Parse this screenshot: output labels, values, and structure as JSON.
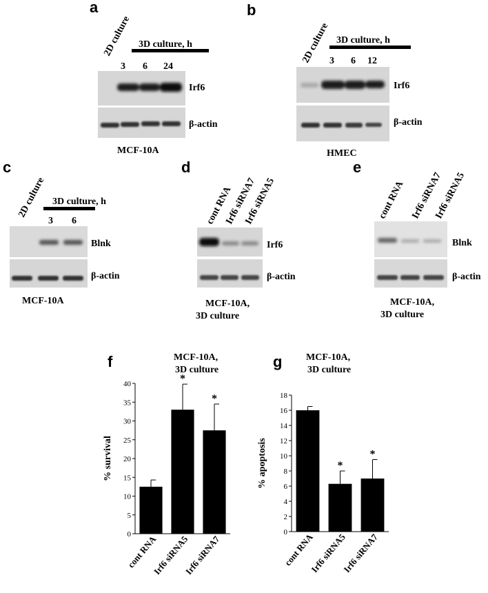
{
  "panels": {
    "a": {
      "letter": "a",
      "col_2d": "2D culture",
      "col_3d": "3D culture, h",
      "times": [
        "3",
        "6",
        "24"
      ],
      "band_top": "Irf6",
      "band_bottom": "β-actin",
      "cell_line": "MCF-10A"
    },
    "b": {
      "letter": "b",
      "col_2d": "2D culture",
      "col_3d": "3D culture, h",
      "times": [
        "3",
        "6",
        "12"
      ],
      "band_top": "Irf6",
      "band_bottom": "β-actin",
      "cell_line": "HMEC"
    },
    "c": {
      "letter": "c",
      "col_2d": "2D culture",
      "col_3d": "3D culture, h",
      "times": [
        "3",
        "6"
      ],
      "band_top": "Blnk",
      "band_bottom": "β-actin",
      "cell_line": "MCF-10A"
    },
    "d": {
      "letter": "d",
      "lanes": [
        "cont RNA",
        "Irf6 siRNA7",
        "Irf6 siRNA5"
      ],
      "band_top": "Irf6",
      "band_bottom": "β-actin",
      "caption_line1": "MCF-10A,",
      "caption_line2": "3D culture"
    },
    "e": {
      "letter": "e",
      "lanes": [
        "cont RNA",
        "Irf6 siRNA7",
        "Irf6 siRNA5"
      ],
      "band_top": "Blnk",
      "band_bottom": "β-actin",
      "caption_line1": "MCF-10A,",
      "caption_line2": "3D culture"
    },
    "f": {
      "letter": "f",
      "title_line1": "MCF-10A,",
      "title_line2": "3D culture"
    },
    "g": {
      "letter": "g",
      "title_line1": "MCF-10A,",
      "title_line2": "3D culture"
    }
  },
  "chart_data": [
    {
      "type": "bar",
      "panel": "f",
      "categories": [
        "cont RNA",
        "Irf6 siRNA5",
        "Irf6 siRNA7"
      ],
      "values": [
        12.5,
        33,
        27.5
      ],
      "errors": [
        1.8,
        6.8,
        7
      ],
      "significance": [
        "",
        "*",
        "*"
      ],
      "ylabel": "% survival",
      "ylim": [
        0,
        40
      ],
      "yticks": [
        0,
        5,
        10,
        15,
        20,
        25,
        30,
        35,
        40
      ],
      "grid": false
    },
    {
      "type": "bar",
      "panel": "g",
      "categories": [
        "cont RNA",
        "Irf6 siRNA5",
        "Irf6 siRNA7"
      ],
      "values": [
        16,
        6.3,
        7
      ],
      "errors": [
        0.5,
        1.7,
        2.5
      ],
      "significance": [
        "",
        "*",
        "*"
      ],
      "ylabel": "% apoptosis",
      "ylim": [
        0,
        18
      ],
      "yticks": [
        0,
        2,
        4,
        6,
        8,
        10,
        12,
        14,
        16,
        18
      ],
      "grid": false
    }
  ]
}
